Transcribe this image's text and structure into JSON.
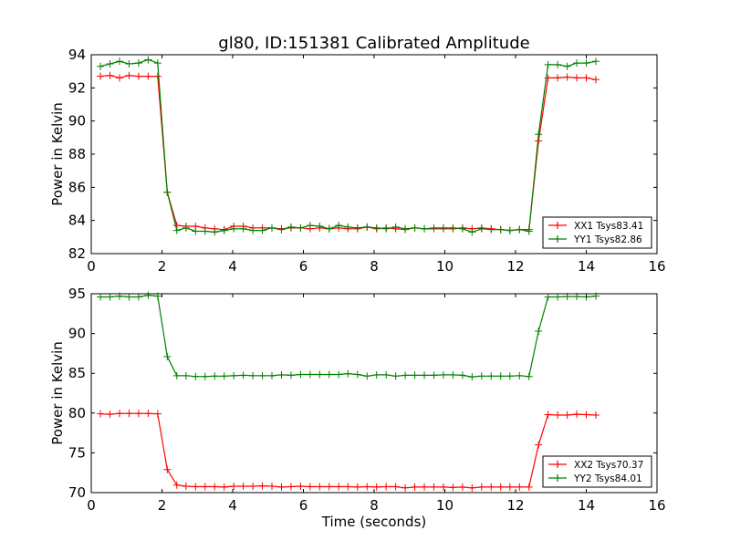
{
  "chart_data": [
    {
      "type": "line",
      "title": "gl80, ID:151381 Calibrated Amplitude",
      "xlabel": "",
      "ylabel": "Power in Kelvin",
      "xlim": [
        0,
        16
      ],
      "ylim": [
        82,
        94
      ],
      "xticks": [
        "0",
        "2",
        "4",
        "6",
        "8",
        "10",
        "12",
        "14",
        "16"
      ],
      "yticks": [
        "82",
        "84",
        "86",
        "88",
        "90",
        "92",
        "94"
      ],
      "legend_position": "lower-right",
      "x": [
        0.26,
        0.53,
        0.8,
        1.07,
        1.34,
        1.61,
        1.88,
        2.15,
        2.42,
        2.68,
        2.95,
        3.22,
        3.49,
        3.76,
        4.03,
        4.3,
        4.57,
        4.84,
        5.11,
        5.38,
        5.65,
        5.92,
        6.19,
        6.46,
        6.73,
        7.0,
        7.26,
        7.53,
        7.8,
        8.07,
        8.34,
        8.61,
        8.88,
        9.15,
        9.42,
        9.69,
        9.96,
        10.23,
        10.5,
        10.77,
        11.04,
        11.31,
        11.58,
        11.84,
        12.11,
        12.38,
        12.65,
        12.92,
        13.19,
        13.46,
        13.73,
        14.0,
        14.27
      ],
      "series": [
        {
          "name": "XX1 Tsys83.41",
          "color": "#ff0000",
          "values": [
            92.7,
            92.75,
            92.6,
            92.75,
            92.7,
            92.7,
            92.7,
            85.7,
            83.7,
            83.65,
            83.65,
            83.55,
            83.5,
            83.45,
            83.65,
            83.65,
            83.55,
            83.55,
            83.55,
            83.5,
            83.55,
            83.55,
            83.5,
            83.55,
            83.5,
            83.55,
            83.5,
            83.5,
            83.6,
            83.5,
            83.55,
            83.5,
            83.45,
            83.55,
            83.5,
            83.5,
            83.5,
            83.5,
            83.55,
            83.5,
            83.55,
            83.5,
            83.45,
            83.4,
            83.45,
            83.45,
            88.8,
            92.6,
            92.6,
            92.65,
            92.6,
            92.6,
            92.5
          ]
        },
        {
          "name": "YY1 Tsys82.86",
          "color": "#008000",
          "values": [
            93.3,
            93.45,
            93.6,
            93.45,
            93.5,
            93.7,
            93.5,
            85.7,
            83.4,
            83.55,
            83.35,
            83.35,
            83.3,
            83.4,
            83.5,
            83.5,
            83.4,
            83.4,
            83.55,
            83.45,
            83.6,
            83.55,
            83.7,
            83.65,
            83.5,
            83.7,
            83.6,
            83.55,
            83.6,
            83.55,
            83.5,
            83.6,
            83.5,
            83.55,
            83.5,
            83.55,
            83.55,
            83.55,
            83.5,
            83.3,
            83.5,
            83.45,
            83.45,
            83.4,
            83.45,
            83.35,
            89.2,
            93.4,
            93.4,
            93.3,
            93.5,
            93.5,
            93.6
          ]
        }
      ]
    },
    {
      "type": "line",
      "title": "",
      "xlabel": "Time (seconds)",
      "ylabel": "Power in Kelvin",
      "xlim": [
        0,
        16
      ],
      "ylim": [
        70,
        95
      ],
      "xticks": [
        "0",
        "2",
        "4",
        "6",
        "8",
        "10",
        "12",
        "14",
        "16"
      ],
      "yticks": [
        "70",
        "75",
        "80",
        "85",
        "90",
        "95"
      ],
      "legend_position": "lower-right",
      "x": [
        0.26,
        0.53,
        0.8,
        1.07,
        1.34,
        1.61,
        1.88,
        2.15,
        2.42,
        2.68,
        2.95,
        3.22,
        3.49,
        3.76,
        4.03,
        4.3,
        4.57,
        4.84,
        5.11,
        5.38,
        5.65,
        5.92,
        6.19,
        6.46,
        6.73,
        7.0,
        7.26,
        7.53,
        7.8,
        8.07,
        8.34,
        8.61,
        8.88,
        9.15,
        9.42,
        9.69,
        9.96,
        10.23,
        10.5,
        10.77,
        11.04,
        11.31,
        11.58,
        11.84,
        12.11,
        12.38,
        12.65,
        12.92,
        13.19,
        13.46,
        13.73,
        14.0,
        14.27
      ],
      "series": [
        {
          "name": "XX2 Tsys70.37",
          "color": "#ff0000",
          "values": [
            79.9,
            79.85,
            79.95,
            79.95,
            79.95,
            79.95,
            79.9,
            72.9,
            70.95,
            70.8,
            70.75,
            70.75,
            70.75,
            70.7,
            70.8,
            70.8,
            70.8,
            70.85,
            70.8,
            70.7,
            70.75,
            70.8,
            70.75,
            70.75,
            70.75,
            70.75,
            70.75,
            70.7,
            70.75,
            70.7,
            70.75,
            70.75,
            70.6,
            70.7,
            70.7,
            70.7,
            70.7,
            70.65,
            70.7,
            70.6,
            70.7,
            70.7,
            70.7,
            70.7,
            70.7,
            70.7,
            76.0,
            79.8,
            79.75,
            79.75,
            79.85,
            79.8,
            79.75
          ]
        },
        {
          "name": "YY2 Tsys84.01",
          "color": "#008000",
          "values": [
            94.6,
            94.6,
            94.7,
            94.6,
            94.6,
            94.8,
            94.7,
            87.1,
            84.7,
            84.7,
            84.6,
            84.6,
            84.65,
            84.65,
            84.7,
            84.75,
            84.7,
            84.7,
            84.7,
            84.8,
            84.75,
            84.85,
            84.85,
            84.85,
            84.85,
            84.85,
            84.95,
            84.85,
            84.65,
            84.8,
            84.8,
            84.65,
            84.75,
            84.75,
            84.75,
            84.75,
            84.8,
            84.8,
            84.75,
            84.55,
            84.65,
            84.65,
            84.65,
            84.65,
            84.7,
            84.6,
            90.3,
            94.6,
            94.6,
            94.65,
            94.65,
            94.6,
            94.7
          ]
        }
      ]
    }
  ]
}
